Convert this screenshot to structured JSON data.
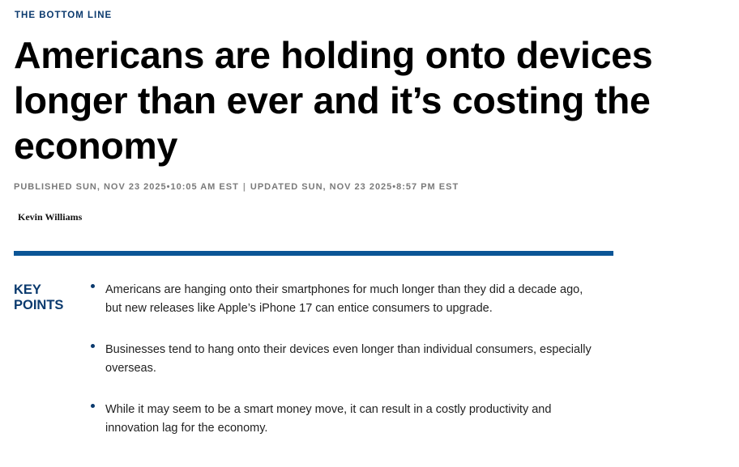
{
  "kicker": "THE BOTTOM LINE",
  "headline": "Americans are holding onto devices longer than ever and it’s costing the economy",
  "dateline": {
    "published": "PUBLISHED SUN, NOV 23 2025•10:05 AM EST",
    "separator": "|",
    "updated": "UPDATED SUN, NOV 23 2025•8:57 PM EST"
  },
  "byline": "Kevin Williams",
  "colors": {
    "accent": "#0b5596",
    "navy": "#0b3a6e"
  },
  "key_points": {
    "label": "KEY POINTS",
    "items": [
      "Americans are hanging onto their smartphones for much longer than they did a decade ago, but new releases like Apple’s iPhone 17 can entice consumers to upgrade.",
      "Businesses tend to hang onto their devices even longer than individual consumers, especially overseas.",
      "While it may seem to be a smart money move, it can result in a costly productivity and innovation lag for the economy."
    ]
  }
}
